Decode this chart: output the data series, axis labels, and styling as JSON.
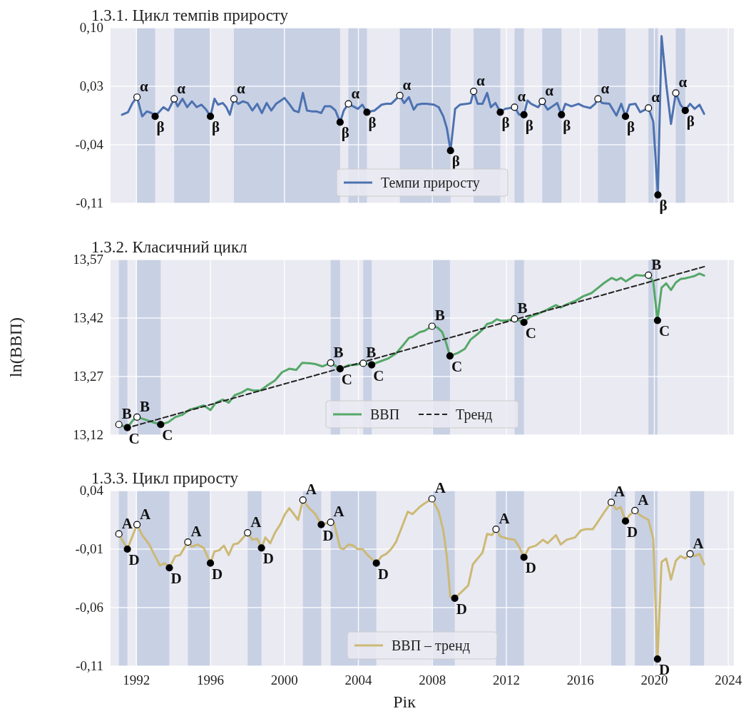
{
  "chart_data": [
    {
      "type": "line",
      "title": "1.3.1. Цикл темпів приросту",
      "xlim": [
        1990.6,
        2024.3
      ],
      "xticks": [
        1992,
        1996,
        2000,
        2004,
        2008,
        2012,
        2016,
        2020,
        2024
      ],
      "ylim": [
        -0.11,
        0.1
      ],
      "yticks": [
        {
          "value": 0.1,
          "label": "0,10"
        },
        {
          "value": 0.03,
          "label": "0,03"
        },
        {
          "value": -0.04,
          "label": "-0,04"
        },
        {
          "value": -0.11,
          "label": "-0,11"
        }
      ],
      "grid": true,
      "legend": "bottom",
      "tick_labels": "y",
      "x": [
        1991.22,
        1991.54,
        1991.79,
        1992.03,
        1992.31,
        1992.56,
        1992.82,
        1993.01,
        1993.46,
        1993.72,
        1994.04,
        1994.23,
        1994.49,
        1994.74,
        1995.0,
        1995.26,
        1995.51,
        1995.77,
        1996.0,
        1996.22,
        1996.41,
        1996.67,
        1996.86,
        1997.05,
        1997.27,
        1997.5,
        1997.76,
        1998.01,
        1998.27,
        1998.53,
        1998.78,
        1999.04,
        1999.29,
        1999.55,
        1999.81,
        2000.0,
        2000.26,
        2000.51,
        2000.77,
        2001.0,
        2001.22,
        2001.47,
        2001.73,
        2001.99,
        2002.18,
        2002.5,
        2002.76,
        2003.01,
        2003.21,
        2003.46,
        2003.72,
        2003.97,
        2004.21,
        2004.46,
        2004.87,
        2005.26,
        2005.51,
        2005.77,
        2005.96,
        2006.24,
        2006.47,
        2006.73,
        2006.99,
        2007.18,
        2007.44,
        2007.69,
        2008.08,
        2008.34,
        2008.59,
        2008.78,
        2008.98,
        2009.23,
        2009.49,
        2009.87,
        2010.07,
        2010.23,
        2010.45,
        2010.71,
        2010.96,
        2011.16,
        2011.41,
        2011.67,
        2011.93,
        2012.18,
        2012.44,
        2012.69,
        2012.95,
        2013.14,
        2013.34,
        2013.72,
        2013.94,
        2014.23,
        2014.49,
        2014.75,
        2014.98,
        2015.19,
        2015.52,
        2015.9,
        2016.16,
        2016.54,
        2016.8,
        2016.95,
        2017.18,
        2017.57,
        2017.95,
        2018.21,
        2018.44,
        2018.66,
        2018.98,
        2019.23,
        2019.68,
        2019.94,
        2020.19,
        2020.39,
        2020.64,
        2020.9,
        2021.16,
        2021.41,
        2021.67,
        2021.93,
        2022.18,
        2022.44,
        2022.69
      ],
      "series": [
        {
          "name": "Темпи приросту",
          "color": "#4c72b0",
          "values": [
            -0.004,
            -0.001,
            0.01,
            0.017,
            -0.006,
            0,
            -0.002,
            -0.006,
            0.005,
            0.001,
            0.015,
            0.006,
            0.015,
            0.005,
            0.012,
            0.005,
            0.008,
            0.002,
            -0.006,
            0.015,
            0.008,
            0.01,
            0.005,
            -0.004,
            0.015,
            0.009,
            0.012,
            0.01,
            0.001,
            0.009,
            -0.002,
            0.01,
            0.001,
            0.009,
            0.013,
            0.016,
            0.009,
            0.001,
            -0.001,
            0.022,
            0.001,
            0,
            0,
            -0.002,
            0.006,
            0.006,
            0.001,
            -0.013,
            0.001,
            0.009,
            0.006,
            0.003,
            0.008,
            -0.001,
            0.001,
            0.008,
            0.009,
            0.009,
            0.013,
            0.019,
            0.01,
            0.017,
            0.002,
            0.008,
            0.009,
            0.009,
            0.008,
            0.005,
            -0.006,
            -0.02,
            -0.047,
            0.003,
            0.008,
            0.009,
            0.01,
            0.024,
            0.009,
            0.009,
            0.022,
            0.005,
            0.01,
            -0.001,
            0.003,
            0.004,
            0.005,
            -0.004,
            -0.004,
            0.013,
            0.009,
            0.005,
            0.012,
            0.002,
            0.006,
            0.01,
            -0.004,
            0.009,
            0.006,
            0.009,
            0.006,
            0.004,
            0.009,
            0.015,
            0.01,
            0.009,
            -0.005,
            0.009,
            -0.006,
            0.008,
            0.009,
            -0.001,
            0.004,
            -0.012,
            -0.1,
            0.09,
            0.033,
            -0.015,
            0.022,
            0.008,
            0.001,
            0.009,
            0.003,
            0.008,
            -0.003
          ]
        },
        {
          "type": "scatter",
          "marker": "circle",
          "color": "#ffffff",
          "x": [
            1992.03,
            1994.04,
            1997.27,
            2003.46,
            2006.24,
            2010.23,
            2012.44,
            2013.94,
            2016.95,
            2019.68,
            2021.16
          ],
          "values": [
            0.017,
            0.015,
            0.015,
            0.009,
            0.019,
            0.024,
            0.005,
            0.012,
            0.015,
            0.004,
            0.022
          ]
        },
        {
          "type": "scatter",
          "marker": "circle",
          "color": "#000000",
          "x": [
            1993.01,
            1996.0,
            2003.01,
            2004.46,
            2008.98,
            2011.67,
            2012.95,
            2014.98,
            2018.44,
            2020.19,
            2021.67
          ],
          "values": [
            -0.006,
            -0.006,
            -0.013,
            -0.001,
            -0.047,
            -0.001,
            -0.004,
            -0.004,
            -0.006,
            -0.1,
            0.001
          ]
        }
      ],
      "bands": [
        {
          "axis": "x",
          "from": 1992.03,
          "to": 1993.01,
          "color": "#c8d0e4"
        },
        {
          "axis": "x",
          "from": 1994.04,
          "to": 1996.0,
          "color": "#c8d0e4"
        },
        {
          "axis": "x",
          "from": 1997.27,
          "to": 2003.01,
          "color": "#c8d0e4"
        },
        {
          "axis": "x",
          "from": 2003.46,
          "to": 2004.46,
          "color": "#c8d0e4"
        },
        {
          "axis": "x",
          "from": 2006.24,
          "to": 2008.98,
          "color": "#c8d0e4"
        },
        {
          "axis": "x",
          "from": 2010.23,
          "to": 2011.67,
          "color": "#c8d0e4"
        },
        {
          "axis": "x",
          "from": 2012.44,
          "to": 2012.95,
          "color": "#c8d0e4"
        },
        {
          "axis": "x",
          "from": 2013.94,
          "to": 2014.98,
          "color": "#c8d0e4"
        },
        {
          "axis": "x",
          "from": 2016.95,
          "to": 2018.44,
          "color": "#c8d0e4"
        },
        {
          "axis": "x",
          "from": 2019.68,
          "to": 2020.19,
          "color": "#c8d0e4"
        },
        {
          "axis": "x",
          "from": 2021.16,
          "to": 2021.67,
          "color": "#c8d0e4"
        }
      ],
      "annotations": [
        {
          "text": "α",
          "x": 1992.03,
          "y": 0.017
        },
        {
          "text": "α",
          "x": 1994.04,
          "y": 0.015
        },
        {
          "text": "α",
          "x": 1997.27,
          "y": 0.015
        },
        {
          "text": "α",
          "x": 2003.46,
          "y": 0.009
        },
        {
          "text": "α",
          "x": 2006.24,
          "y": 0.019
        },
        {
          "text": "α",
          "x": 2010.23,
          "y": 0.024
        },
        {
          "text": "α",
          "x": 2012.44,
          "y": 0.005
        },
        {
          "text": "α",
          "x": 2013.94,
          "y": 0.012
        },
        {
          "text": "α",
          "x": 2016.95,
          "y": 0.015
        },
        {
          "text": "α",
          "x": 2019.68,
          "y": 0.004
        },
        {
          "text": "α",
          "x": 2021.16,
          "y": 0.022
        },
        {
          "text": "β",
          "x": 1993.01,
          "y": -0.006
        },
        {
          "text": "β",
          "x": 1996.0,
          "y": -0.006
        },
        {
          "text": "β",
          "x": 2003.01,
          "y": -0.013
        },
        {
          "text": "β",
          "x": 2004.46,
          "y": -0.001
        },
        {
          "text": "β",
          "x": 2008.98,
          "y": -0.047
        },
        {
          "text": "β",
          "x": 2011.67,
          "y": -0.001
        },
        {
          "text": "β",
          "x": 2012.95,
          "y": -0.004
        },
        {
          "text": "β",
          "x": 2014.98,
          "y": -0.004
        },
        {
          "text": "β",
          "x": 2018.44,
          "y": -0.006
        },
        {
          "text": "β",
          "x": 2020.19,
          "y": -0.1
        },
        {
          "text": "β",
          "x": 2021.67,
          "y": 0.001
        }
      ]
    },
    {
      "type": "line",
      "title": "1.3.2. Класичний цикл",
      "ylabel": "ln(ВВП)",
      "xlim": [
        1990.6,
        2024.3
      ],
      "xticks": [
        1992,
        1996,
        2000,
        2004,
        2008,
        2012,
        2016,
        2020,
        2024
      ],
      "ylim": [
        13.12,
        13.57
      ],
      "yticks": [
        {
          "value": 13.57,
          "label": "13,57"
        },
        {
          "value": 13.42,
          "label": "13,42"
        },
        {
          "value": 13.27,
          "label": "13,27"
        },
        {
          "value": 13.12,
          "label": "13,12"
        }
      ],
      "grid": true,
      "legend": "bottom",
      "tick_labels": "y",
      "x": [
        1991.05,
        1991.51,
        1991.79,
        1992.03,
        1992.44,
        1992.88,
        1993.31,
        1993.72,
        1994.1,
        1994.49,
        1994.87,
        1995.26,
        1995.64,
        1996.0,
        1996.28,
        1996.67,
        1996.99,
        1997.31,
        1997.69,
        1998.01,
        1998.33,
        1998.72,
        1999.1,
        1999.49,
        1999.87,
        2000.26,
        2000.64,
        2000.96,
        2001.41,
        2001.67,
        2002.05,
        2002.5,
        2003.01,
        2003.46,
        2003.85,
        2004.26,
        2004.72,
        2005.13,
        2005.64,
        2006.03,
        2006.41,
        2006.73,
        2006.92,
        2007.31,
        2007.57,
        2007.98,
        2008.27,
        2008.53,
        2008.72,
        2008.95,
        2009.36,
        2009.75,
        2010.07,
        2010.39,
        2010.71,
        2010.96,
        2011.22,
        2011.48,
        2011.73,
        2012.05,
        2012.44,
        2012.95,
        2013.27,
        2013.72,
        2014.1,
        2014.68,
        2014.94,
        2015.26,
        2015.77,
        2016.16,
        2016.6,
        2016.86,
        2017.31,
        2017.69,
        2017.95,
        2018.21,
        2018.46,
        2018.98,
        2019.36,
        2019.68,
        2019.94,
        2020.17,
        2020.39,
        2020.64,
        2020.9,
        2021.16,
        2021.41,
        2021.67,
        2021.93,
        2022.18,
        2022.44,
        2022.69
      ],
      "series": [
        {
          "name": "ВВП",
          "color": "#55a868",
          "values": [
            13.147,
            13.139,
            13.157,
            13.166,
            13.16,
            13.153,
            13.147,
            13.153,
            13.166,
            13.172,
            13.185,
            13.19,
            13.196,
            13.184,
            13.202,
            13.211,
            13.203,
            13.222,
            13.229,
            13.238,
            13.234,
            13.235,
            13.248,
            13.26,
            13.281,
            13.29,
            13.287,
            13.305,
            13.304,
            13.302,
            13.296,
            13.305,
            13.29,
            13.299,
            13.3,
            13.304,
            13.3,
            13.308,
            13.317,
            13.329,
            13.35,
            13.369,
            13.372,
            13.384,
            13.387,
            13.399,
            13.396,
            13.384,
            13.36,
            13.323,
            13.33,
            13.341,
            13.365,
            13.377,
            13.39,
            13.405,
            13.408,
            13.417,
            13.413,
            13.414,
            13.418,
            13.409,
            13.423,
            13.431,
            13.439,
            13.453,
            13.447,
            13.455,
            13.465,
            13.476,
            13.484,
            13.494,
            13.511,
            13.523,
            13.517,
            13.523,
            13.514,
            13.53,
            13.529,
            13.53,
            13.514,
            13.414,
            13.498,
            13.509,
            13.492,
            13.511,
            13.52,
            13.522,
            13.525,
            13.528,
            13.534,
            13.529
          ]
        },
        {
          "name": "Тренд",
          "color": "#222222",
          "line_style": "dashed",
          "x": [
            1991.4,
            2022.7
          ],
          "values": [
            13.137,
            13.552
          ]
        },
        {
          "type": "scatter",
          "marker": "circle",
          "color": "#ffffff",
          "x": [
            1991.05,
            1992.03,
            2002.5,
            2004.26,
            2007.98,
            2012.44,
            2019.68
          ],
          "values": [
            13.147,
            13.166,
            13.305,
            13.304,
            13.399,
            13.418,
            13.53
          ]
        },
        {
          "type": "scatter",
          "marker": "circle",
          "color": "#000000",
          "x": [
            1991.51,
            1993.31,
            2003.01,
            2004.72,
            2008.95,
            2012.95,
            2020.17
          ],
          "values": [
            13.139,
            13.147,
            13.29,
            13.3,
            13.323,
            13.409,
            13.414
          ]
        }
      ],
      "bands": [
        {
          "axis": "x",
          "from": 1991.05,
          "to": 1991.51,
          "color": "#c8d0e4"
        },
        {
          "axis": "x",
          "from": 1992.03,
          "to": 1993.31,
          "color": "#c8d0e4"
        },
        {
          "axis": "x",
          "from": 2002.5,
          "to": 2003.01,
          "color": "#c8d0e4"
        },
        {
          "axis": "x",
          "from": 2004.26,
          "to": 2004.72,
          "color": "#c8d0e4"
        },
        {
          "axis": "x",
          "from": 2007.98,
          "to": 2008.95,
          "color": "#c8d0e4"
        },
        {
          "axis": "x",
          "from": 2012.44,
          "to": 2012.95,
          "color": "#c8d0e4"
        },
        {
          "axis": "x",
          "from": 2019.68,
          "to": 2020.17,
          "color": "#c8d0e4"
        }
      ],
      "annotations": [
        {
          "text": "B",
          "x": 1991.05,
          "y": 13.147
        },
        {
          "text": "B",
          "x": 1992.03,
          "y": 13.166
        },
        {
          "text": "B",
          "x": 2002.5,
          "y": 13.305
        },
        {
          "text": "B",
          "x": 2004.26,
          "y": 13.304
        },
        {
          "text": "B",
          "x": 2007.98,
          "y": 13.399
        },
        {
          "text": "B",
          "x": 2012.44,
          "y": 13.418
        },
        {
          "text": "B",
          "x": 2019.68,
          "y": 13.53
        },
        {
          "text": "C",
          "x": 1991.51,
          "y": 13.139
        },
        {
          "text": "C",
          "x": 1993.31,
          "y": 13.147
        },
        {
          "text": "C",
          "x": 2003.01,
          "y": 13.29
        },
        {
          "text": "C",
          "x": 2004.72,
          "y": 13.3
        },
        {
          "text": "C",
          "x": 2008.95,
          "y": 13.323
        },
        {
          "text": "C",
          "x": 2012.95,
          "y": 13.409
        },
        {
          "text": "C",
          "x": 2020.17,
          "y": 13.414
        }
      ]
    },
    {
      "type": "line",
      "title": "1.3.3. Цикл приросту",
      "xlabel": "Рік",
      "xlim": [
        1990.6,
        2024.3
      ],
      "xticks": [
        1992,
        1996,
        2000,
        2004,
        2008,
        2012,
        2016,
        2020,
        2024
      ],
      "ylim": [
        -0.11,
        0.04
      ],
      "yticks": [
        {
          "value": 0.04,
          "label": "0,04"
        },
        {
          "value": -0.01,
          "label": "-0,01"
        },
        {
          "value": -0.06,
          "label": "-0,06"
        },
        {
          "value": -0.11,
          "label": "-0,11"
        }
      ],
      "grid": true,
      "legend": "bottom",
      "x": [
        1991.05,
        1991.51,
        1992.03,
        1992.31,
        1992.69,
        1993.01,
        1993.27,
        1993.53,
        1993.78,
        1994.1,
        1994.36,
        1994.78,
        1995.0,
        1995.32,
        1995.64,
        1996.0,
        1996.22,
        1996.47,
        1996.73,
        1996.99,
        1997.24,
        1997.5,
        1998.01,
        1998.27,
        1998.53,
        1998.76,
        1998.97,
        1999.23,
        1999.49,
        1999.81,
        2000.0,
        2000.26,
        2000.51,
        2000.74,
        2001.0,
        2001.28,
        2001.67,
        2001.99,
        2002.5,
        2002.69,
        2003.01,
        2003.21,
        2003.46,
        2003.72,
        2003.97,
        2004.23,
        2004.49,
        2004.97,
        2005.26,
        2005.51,
        2005.77,
        2006.03,
        2006.28,
        2006.67,
        2006.92,
        2007.31,
        2007.57,
        2007.98,
        2008.34,
        2008.59,
        2008.78,
        2008.97,
        2009.21,
        2009.55,
        2009.94,
        2010.19,
        2010.71,
        2010.96,
        2011.22,
        2011.44,
        2011.67,
        2012.05,
        2012.44,
        2012.69,
        2012.95,
        2013.21,
        2013.59,
        2013.98,
        2014.23,
        2014.68,
        2014.94,
        2015.26,
        2015.71,
        2016.03,
        2016.28,
        2016.67,
        2016.93,
        2017.31,
        2017.67,
        2017.95,
        2018.18,
        2018.44,
        2018.66,
        2018.95,
        2019.23,
        2019.68,
        2019.94,
        2020.17,
        2020.39,
        2020.64,
        2020.9,
        2021.16,
        2021.41,
        2021.67,
        2021.93,
        2022.18,
        2022.44,
        2022.69
      ],
      "series": [
        {
          "name": "ВВП – тренд",
          "color": "#ccb974",
          "values": [
            0.003,
            -0.01,
            0.011,
            0.002,
            -0.006,
            -0.016,
            -0.024,
            -0.022,
            -0.026,
            -0.016,
            -0.015,
            -0.004,
            -0.008,
            -0.006,
            -0.009,
            -0.022,
            -0.012,
            -0.011,
            -0.007,
            -0.015,
            -0.006,
            -0.005,
            0.004,
            -0.002,
            -0.001,
            -0.009,
            0,
            -0.005,
            0.004,
            0.012,
            0.019,
            0.025,
            0.02,
            0.015,
            0.032,
            0.026,
            0.02,
            0.011,
            0.013,
            0.012,
            -0.009,
            -0.01,
            -0.006,
            -0.007,
            -0.01,
            -0.01,
            -0.015,
            -0.022,
            -0.016,
            -0.014,
            -0.01,
            -0.004,
            0.006,
            0.022,
            0.02,
            0.026,
            0.029,
            0.033,
            0.022,
            0.006,
            -0.016,
            -0.051,
            -0.052,
            -0.047,
            -0.041,
            -0.023,
            -0.013,
            0.003,
            0.002,
            0.007,
            0.001,
            -0.001,
            -0.002,
            -0.008,
            -0.017,
            -0.009,
            -0.007,
            -0.002,
            -0.005,
            0.002,
            -0.006,
            -0.002,
            0,
            0.006,
            0.007,
            0.007,
            0.013,
            0.022,
            0.03,
            0.024,
            0.026,
            0.014,
            0.019,
            0.023,
            0.019,
            0.015,
            -0.001,
            -0.104,
            -0.021,
            -0.018,
            -0.036,
            -0.02,
            -0.016,
            -0.018,
            -0.014,
            -0.016,
            -0.014,
            -0.023
          ]
        },
        {
          "type": "scatter",
          "marker": "circle",
          "color": "#ffffff",
          "x": [
            1991.05,
            1992.03,
            1994.78,
            1998.01,
            2001.0,
            2002.5,
            2007.98,
            2011.44,
            2017.67,
            2018.95,
            2021.93
          ],
          "values": [
            0.003,
            0.011,
            -0.004,
            0.004,
            0.032,
            0.013,
            0.033,
            0.007,
            0.03,
            0.023,
            -0.014
          ]
        },
        {
          "type": "scatter",
          "marker": "circle",
          "color": "#000000",
          "x": [
            1991.51,
            1993.78,
            1996.0,
            1998.76,
            2001.99,
            2004.97,
            2009.21,
            2012.95,
            2018.44,
            2020.17
          ],
          "values": [
            -0.01,
            -0.026,
            -0.022,
            -0.009,
            0.011,
            -0.022,
            -0.052,
            -0.017,
            0.014,
            -0.104
          ]
        }
      ],
      "bands": [
        {
          "axis": "x",
          "from": 1991.05,
          "to": 1991.51,
          "color": "#c8d0e4"
        },
        {
          "axis": "x",
          "from": 1992.03,
          "to": 1993.78,
          "color": "#c8d0e4"
        },
        {
          "axis": "x",
          "from": 1994.78,
          "to": 1996.0,
          "color": "#c8d0e4"
        },
        {
          "axis": "x",
          "from": 1998.01,
          "to": 1998.76,
          "color": "#c8d0e4"
        },
        {
          "axis": "x",
          "from": 2001.0,
          "to": 2001.99,
          "color": "#c8d0e4"
        },
        {
          "axis": "x",
          "from": 2002.5,
          "to": 2004.97,
          "color": "#c8d0e4"
        },
        {
          "axis": "x",
          "from": 2007.98,
          "to": 2009.21,
          "color": "#c8d0e4"
        },
        {
          "axis": "x",
          "from": 2011.44,
          "to": 2012.95,
          "color": "#c8d0e4"
        },
        {
          "axis": "x",
          "from": 2017.67,
          "to": 2018.44,
          "color": "#c8d0e4"
        },
        {
          "axis": "x",
          "from": 2018.95,
          "to": 2020.17,
          "color": "#c8d0e4"
        },
        {
          "axis": "x",
          "from": 2021.93,
          "to": 2022.69,
          "color": "#c8d0e4"
        }
      ],
      "annotations": [
        {
          "text": "A",
          "x": 1991.05,
          "y": 0.003
        },
        {
          "text": "A",
          "x": 1992.03,
          "y": 0.011
        },
        {
          "text": "A",
          "x": 1994.78,
          "y": -0.004
        },
        {
          "text": "A",
          "x": 1998.01,
          "y": 0.004
        },
        {
          "text": "A",
          "x": 2001.0,
          "y": 0.032
        },
        {
          "text": "A",
          "x": 2002.5,
          "y": 0.013
        },
        {
          "text": "A",
          "x": 2007.98,
          "y": 0.033
        },
        {
          "text": "A",
          "x": 2011.44,
          "y": 0.007
        },
        {
          "text": "A",
          "x": 2017.67,
          "y": 0.03
        },
        {
          "text": "A",
          "x": 2018.95,
          "y": 0.023
        },
        {
          "text": "A",
          "x": 2021.93,
          "y": -0.014
        },
        {
          "text": "D",
          "x": 1991.51,
          "y": -0.01
        },
        {
          "text": "D",
          "x": 1993.78,
          "y": -0.026
        },
        {
          "text": "D",
          "x": 1996.0,
          "y": -0.022
        },
        {
          "text": "D",
          "x": 1998.76,
          "y": -0.009
        },
        {
          "text": "D",
          "x": 2001.99,
          "y": 0.011
        },
        {
          "text": "D",
          "x": 2004.97,
          "y": -0.022
        },
        {
          "text": "D",
          "x": 2009.21,
          "y": -0.052
        },
        {
          "text": "D",
          "x": 2012.95,
          "y": -0.017
        },
        {
          "text": "D",
          "x": 2018.44,
          "y": 0.014
        },
        {
          "text": "D",
          "x": 2020.17,
          "y": -0.104
        }
      ]
    }
  ]
}
